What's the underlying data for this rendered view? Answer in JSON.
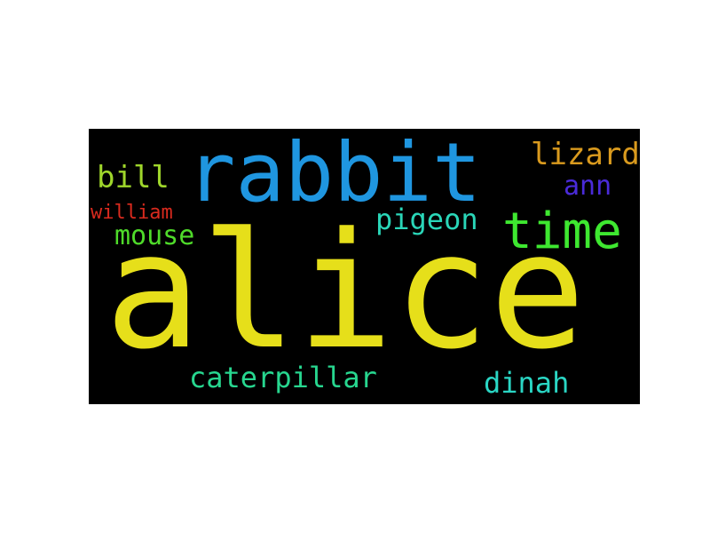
{
  "word_cloud": {
    "background": "#000000",
    "words": [
      {
        "id": "alice",
        "text": "alice",
        "color": "#e6df1a"
      },
      {
        "id": "rabbit",
        "text": "rabbit",
        "color": "#1f96e0"
      },
      {
        "id": "time",
        "text": "time",
        "color": "#3ee830"
      },
      {
        "id": "lizard",
        "text": "lizard",
        "color": "#d99a1e"
      },
      {
        "id": "ann",
        "text": "ann",
        "color": "#4a2bd9"
      },
      {
        "id": "bill",
        "text": "bill",
        "color": "#9fd62b"
      },
      {
        "id": "william",
        "text": "william",
        "color": "#d92a1e"
      },
      {
        "id": "pigeon",
        "text": "pigeon",
        "color": "#2ad6b8"
      },
      {
        "id": "mouse",
        "text": "mouse",
        "color": "#4fdb2a"
      },
      {
        "id": "caterpillar",
        "text": "caterpillar",
        "color": "#27d68f"
      },
      {
        "id": "dinah",
        "text": "dinah",
        "color": "#2ad6c4"
      }
    ]
  }
}
